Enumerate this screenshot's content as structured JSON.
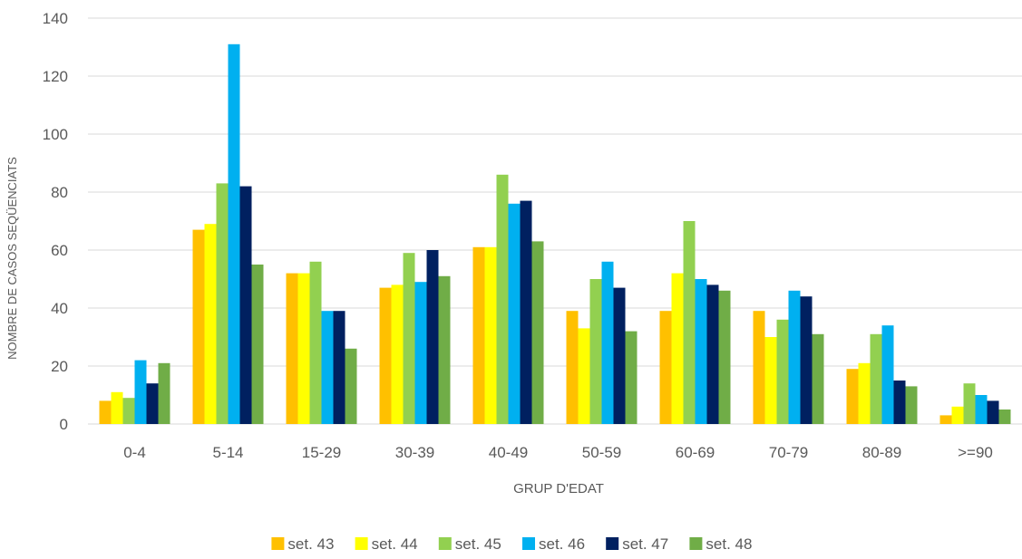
{
  "chart_data": {
    "type": "bar",
    "xlabel": "GRUP D'EDAT",
    "ylabel": "NOMBRE DE CASOS SEQÜENCIATS",
    "ylim": [
      0,
      140
    ],
    "yticks": [
      0,
      20,
      40,
      60,
      80,
      100,
      120,
      140
    ],
    "grid": true,
    "legend_position": "bottom",
    "categories": [
      "0-4",
      "5-14",
      "15-29",
      "30-39",
      "40-49",
      "50-59",
      "60-69",
      "70-79",
      "80-89",
      ">=90"
    ],
    "series": [
      {
        "name": "set. 43",
        "color": "#FFC000",
        "values": [
          8,
          67,
          52,
          47,
          61,
          39,
          39,
          39,
          19,
          3
        ]
      },
      {
        "name": "set. 44",
        "color": "#FFFF00",
        "values": [
          11,
          69,
          52,
          48,
          61,
          33,
          52,
          30,
          21,
          6
        ]
      },
      {
        "name": "set. 45",
        "color": "#92D050",
        "values": [
          9,
          83,
          56,
          59,
          86,
          50,
          70,
          36,
          31,
          14
        ]
      },
      {
        "name": "set. 46",
        "color": "#00B0F0",
        "values": [
          22,
          131,
          39,
          49,
          76,
          56,
          50,
          46,
          34,
          10
        ]
      },
      {
        "name": "set. 47",
        "color": "#002060",
        "values": [
          14,
          82,
          39,
          60,
          77,
          47,
          48,
          44,
          15,
          8
        ]
      },
      {
        "name": "set. 48",
        "color": "#70AD47",
        "values": [
          21,
          55,
          26,
          51,
          63,
          32,
          46,
          31,
          13,
          5
        ]
      }
    ]
  }
}
